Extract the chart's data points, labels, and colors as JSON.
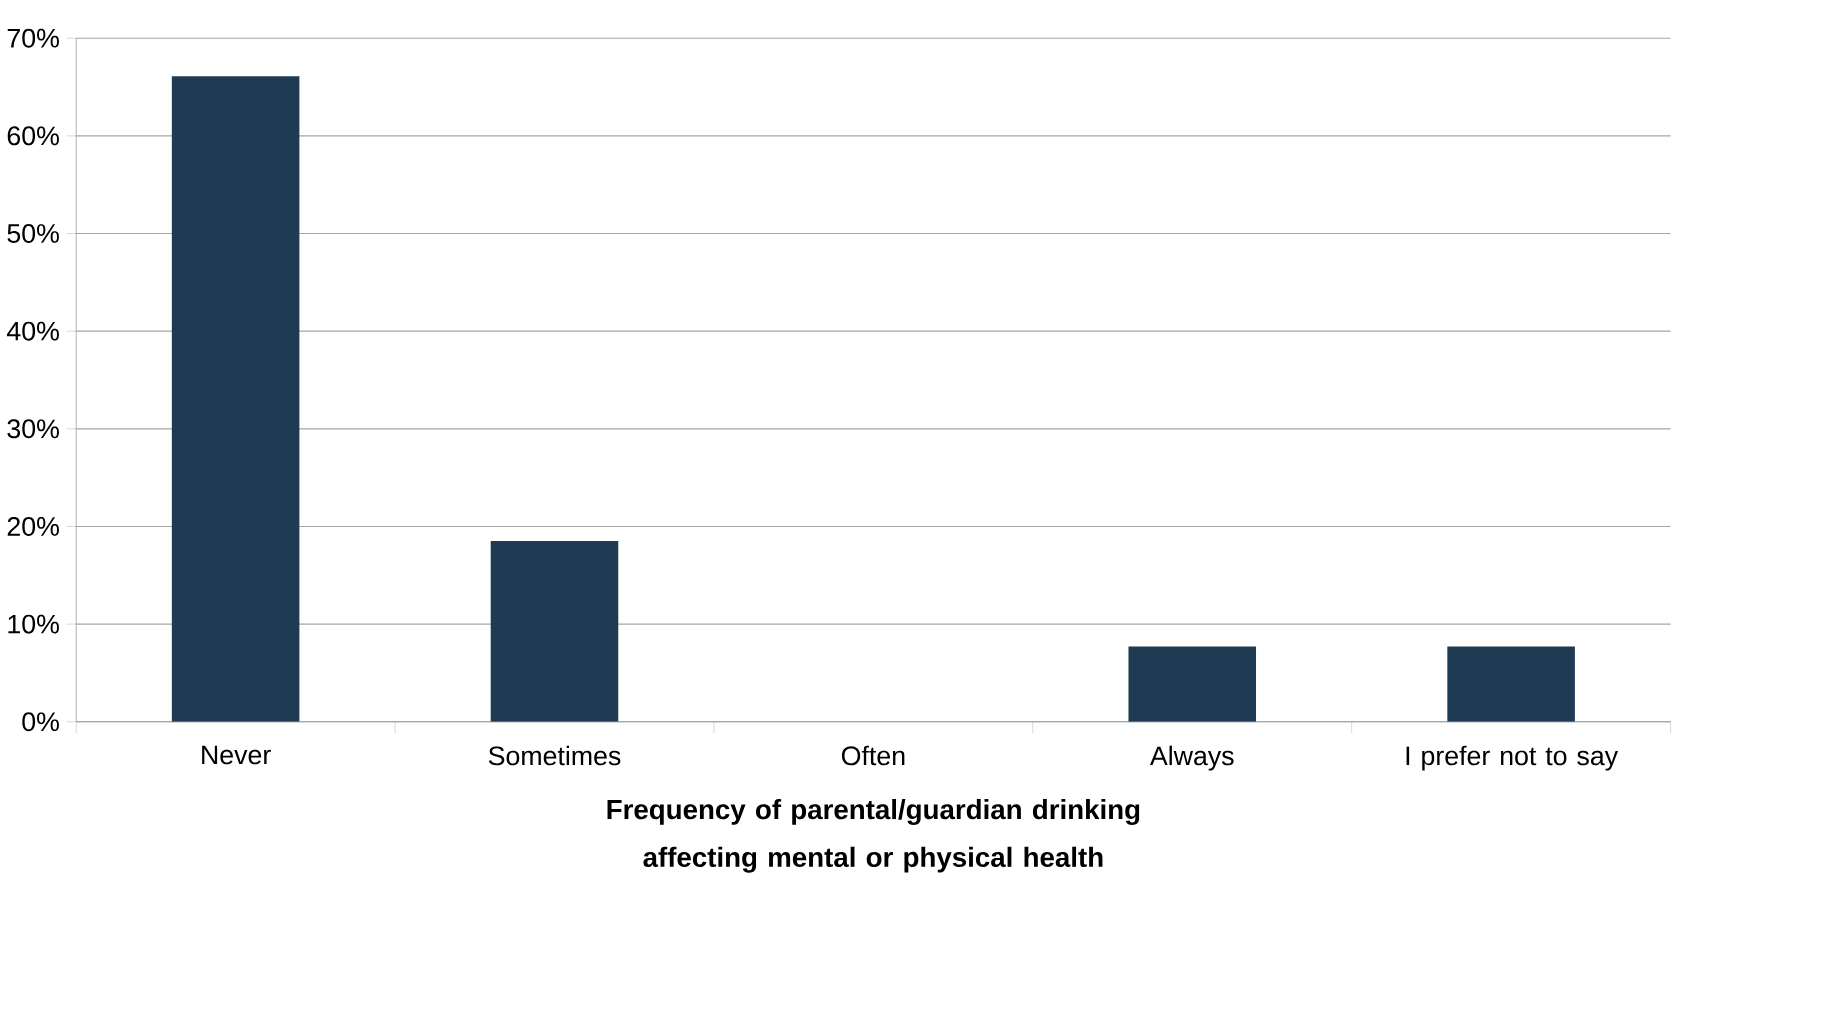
{
  "chart_data": {
    "type": "bar",
    "xlabel": "Frequency of parental/guardian drinking affecting mental or physical health",
    "categories": [
      "Never",
      "Sometimes",
      "Often",
      "Always",
      "I prefer not to say"
    ],
    "values": [
      66.1,
      18.5,
      0,
      7.7,
      7.7
    ],
    "color": "#1f3b53",
    "ylim": [
      0,
      70
    ],
    "yticks": [
      {
        "value": 0,
        "label": "0%"
      },
      {
        "value": 10,
        "label": "10%"
      },
      {
        "value": 20,
        "label": "20%"
      },
      {
        "value": 30,
        "label": "30%"
      },
      {
        "value": 40,
        "label": "40%"
      },
      {
        "value": 50,
        "label": "50%"
      },
      {
        "value": 60,
        "label": "60%"
      },
      {
        "value": 70,
        "label": "70%"
      }
    ],
    "grid": "y"
  }
}
